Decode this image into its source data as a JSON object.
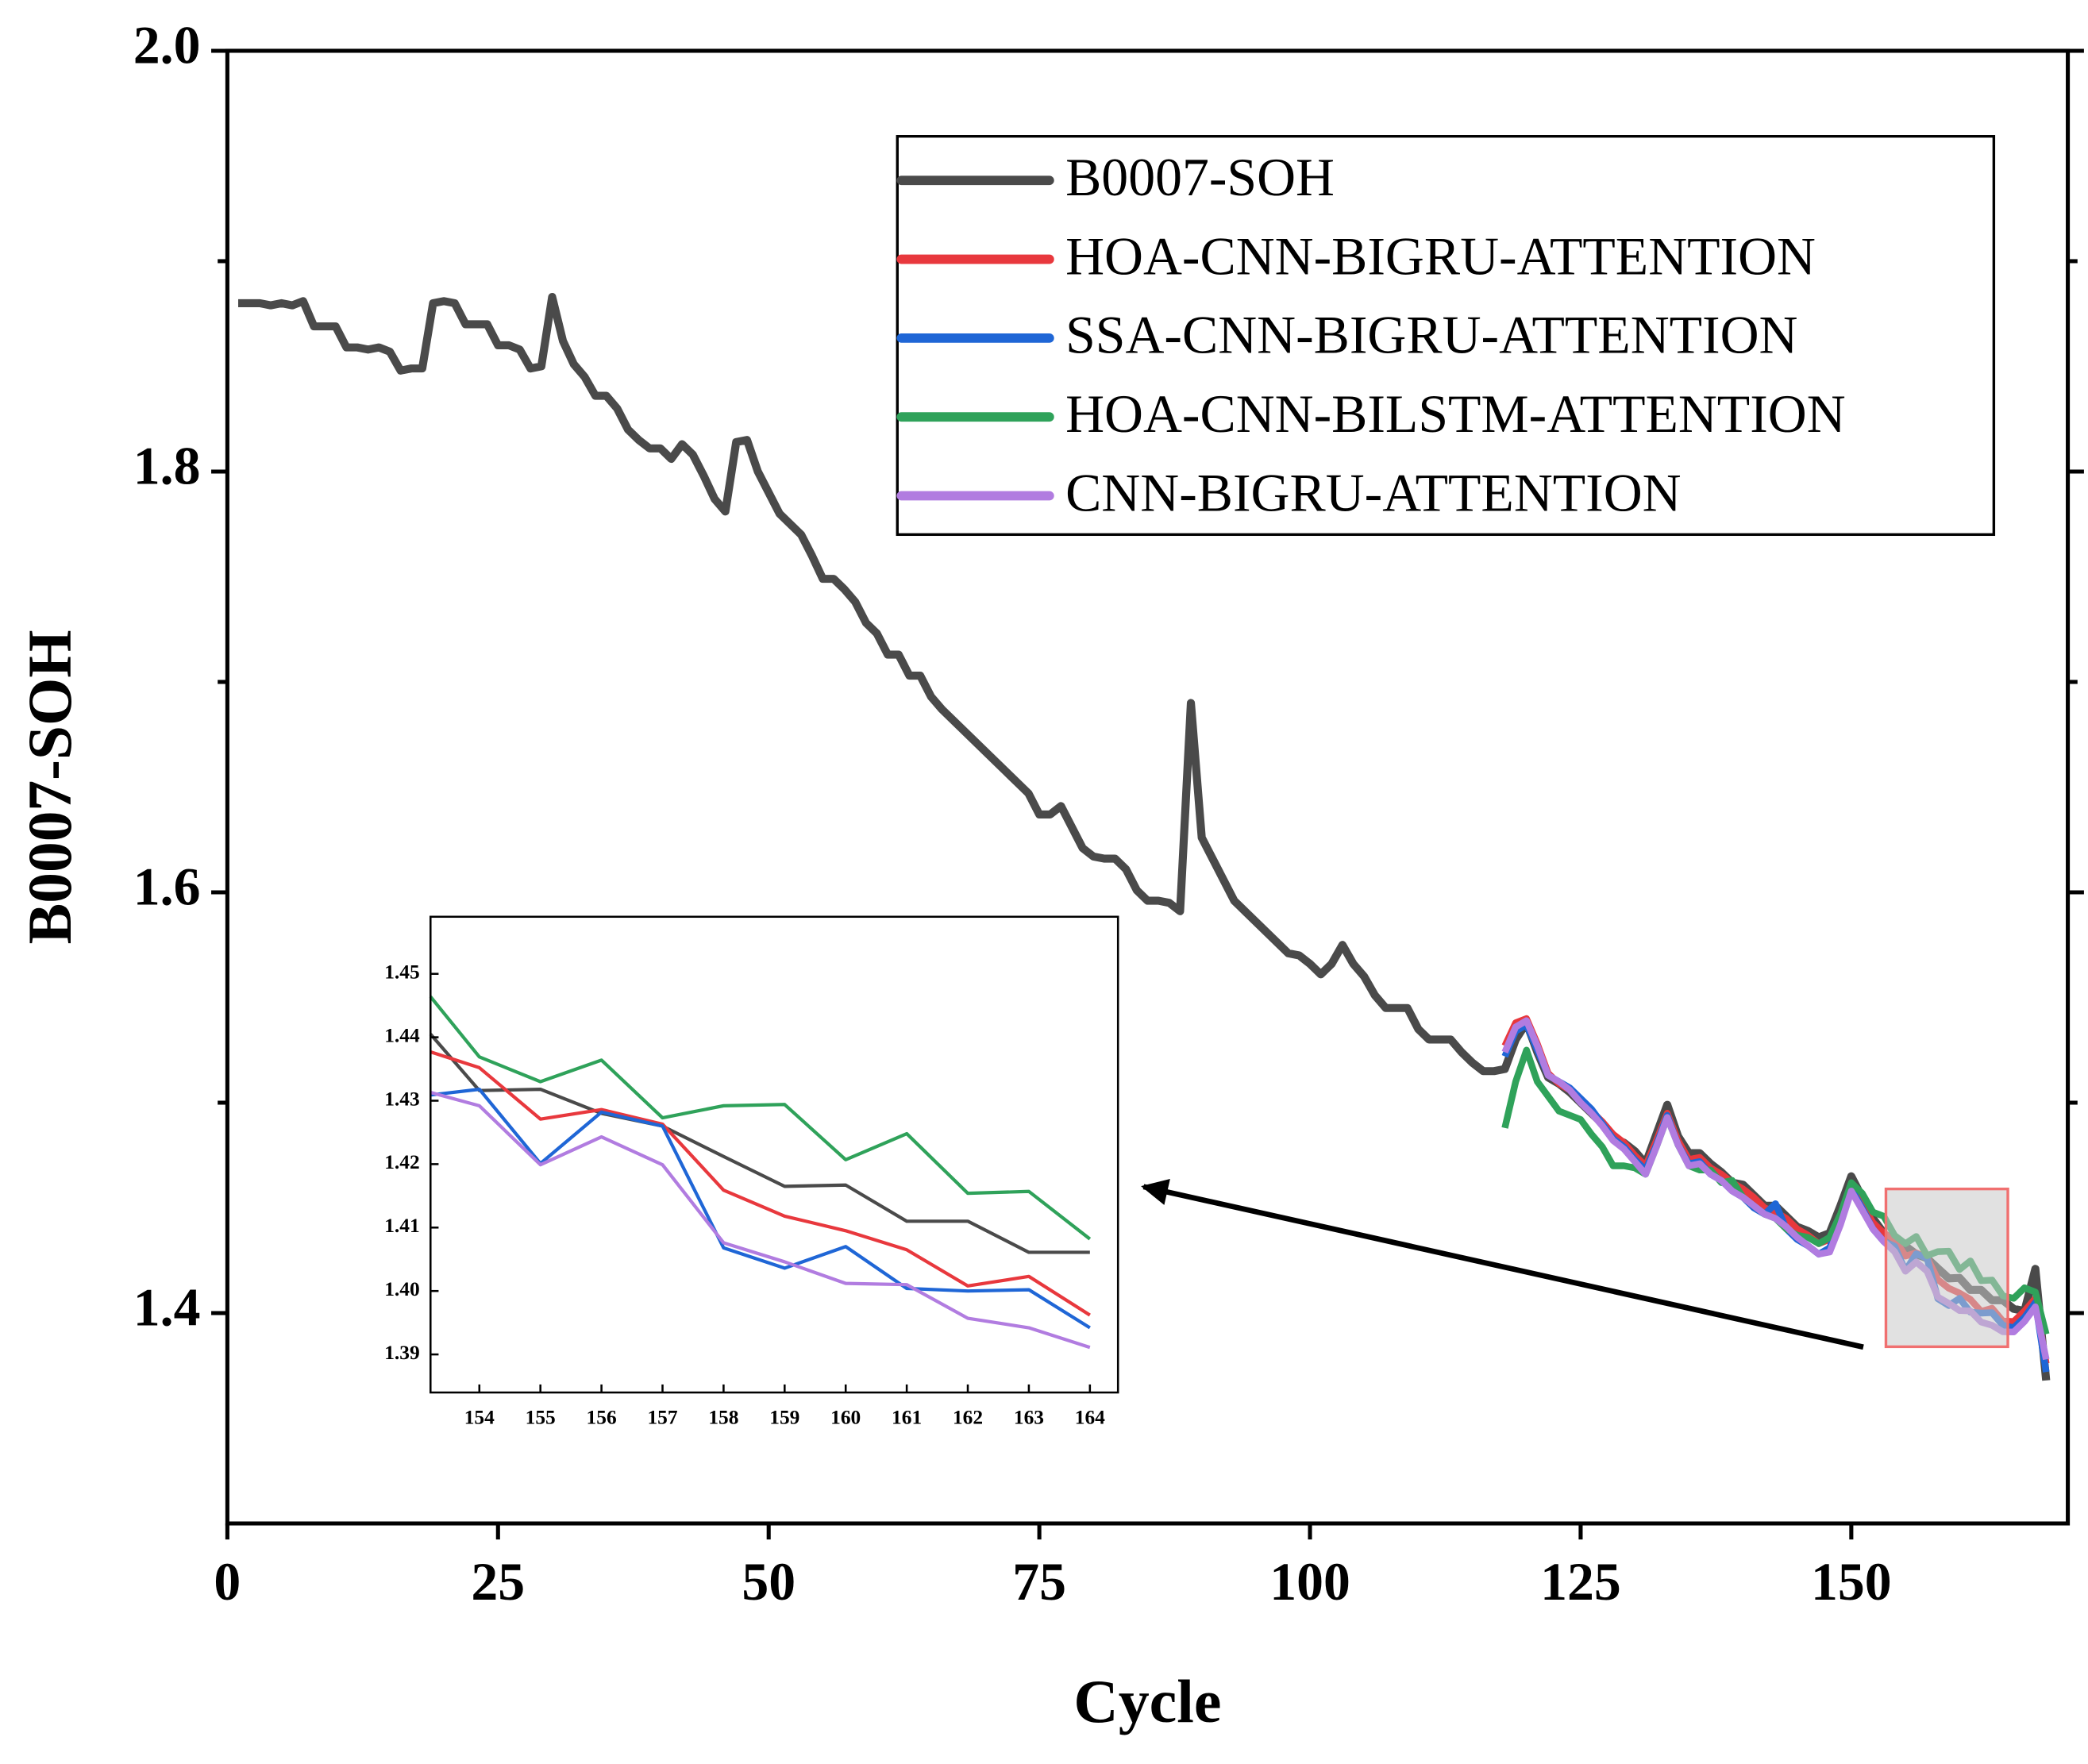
{
  "chart_data": [
    {
      "type": "line",
      "xlabel": "Cycle",
      "ylabel": "B0007-SOH",
      "xlim": [
        0,
        170
      ],
      "ylim": [
        1.3,
        2.0
      ],
      "xticks": [
        0,
        25,
        50,
        75,
        100,
        125,
        150
      ],
      "yticks": [
        {
          "value": 1.4,
          "label": "1.4"
        },
        {
          "value": 1.6,
          "label": "1.6"
        },
        {
          "value": 1.8,
          "label": "1.8"
        },
        {
          "value": 2.0,
          "label": "2.0"
        }
      ],
      "yminorticks": [
        1.5,
        1.7,
        1.9
      ],
      "legend": "upper right",
      "series": [
        {
          "name": "B0007-SOH",
          "color": "#4a4a4a",
          "x": [
            1,
            2,
            3,
            4,
            5,
            6,
            7,
            8,
            9,
            10,
            11,
            12,
            13,
            14,
            15,
            16,
            17,
            18,
            19,
            20,
            21,
            22,
            23,
            24,
            25,
            26,
            27,
            28,
            29,
            30,
            31,
            32,
            33,
            34,
            35,
            36,
            37,
            38,
            39,
            40,
            41,
            42,
            43,
            44,
            45,
            46,
            47,
            48,
            49,
            50,
            51,
            52,
            53,
            54,
            55,
            56,
            57,
            58,
            59,
            60,
            61,
            62,
            63,
            64,
            65,
            66,
            67,
            68,
            69,
            70,
            71,
            72,
            73,
            74,
            75,
            76,
            77,
            78,
            79,
            80,
            81,
            82,
            83,
            84,
            85,
            86,
            87,
            88,
            89,
            90,
            91,
            92,
            93,
            94,
            95,
            96,
            97,
            98,
            99,
            100,
            101,
            102,
            103,
            104,
            105,
            106,
            107,
            108,
            109,
            110,
            111,
            112,
            113,
            114,
            115,
            116,
            117,
            118,
            119,
            120,
            121,
            122,
            123,
            124,
            125,
            126,
            127,
            128,
            129,
            130,
            131,
            132,
            133,
            134,
            135,
            136,
            137,
            138,
            139,
            140,
            141,
            142,
            143,
            144,
            145,
            146,
            147,
            148,
            149,
            150,
            151,
            152,
            153,
            154,
            155,
            156,
            157,
            158,
            159,
            160,
            161,
            162,
            163,
            164,
            165,
            166,
            167,
            168
          ],
          "values": [
            1.88,
            1.88,
            1.88,
            1.879,
            1.88,
            1.879,
            1.881,
            1.869,
            1.869,
            1.869,
            1.859,
            1.859,
            1.858,
            1.859,
            1.857,
            1.848,
            1.849,
            1.849,
            1.88,
            1.881,
            1.88,
            1.87,
            1.87,
            1.87,
            1.86,
            1.86,
            1.858,
            1.849,
            1.85,
            1.883,
            1.862,
            1.851,
            1.845,
            1.836,
            1.836,
            1.83,
            1.82,
            1.815,
            1.811,
            1.811,
            1.806,
            1.813,
            1.808,
            1.798,
            1.787,
            1.781,
            1.814,
            1.815,
            1.8,
            1.79,
            1.78,
            1.775,
            1.77,
            1.76,
            1.749,
            1.749,
            1.744,
            1.738,
            1.728,
            1.723,
            1.713,
            1.713,
            1.703,
            1.703,
            1.693,
            1.687,
            1.682,
            1.677,
            1.672,
            1.667,
            1.662,
            1.657,
            1.652,
            1.647,
            1.637,
            1.637,
            1.641,
            1.631,
            1.621,
            1.617,
            1.616,
            1.616,
            1.611,
            1.601,
            1.596,
            1.596,
            1.595,
            1.591,
            1.69,
            1.626,
            1.616,
            1.606,
            1.596,
            1.591,
            1.586,
            1.581,
            1.576,
            1.571,
            1.57,
            1.566,
            1.561,
            1.566,
            1.575,
            1.566,
            1.56,
            1.551,
            1.545,
            1.545,
            1.545,
            1.535,
            1.53,
            1.53,
            1.53,
            1.524,
            1.519,
            1.515,
            1.515,
            1.516,
            1.53,
            1.538,
            1.524,
            1.512,
            1.509,
            1.505,
            1.5,
            1.495,
            1.49,
            1.483,
            1.481,
            1.477,
            1.471,
            1.485,
            1.499,
            1.484,
            1.476,
            1.476,
            1.471,
            1.467,
            1.462,
            1.461,
            1.456,
            1.451,
            1.451,
            1.446,
            1.441,
            1.439,
            1.436,
            1.438,
            1.451,
            1.465,
            1.455,
            1.445,
            1.438,
            1.4316,
            1.4318,
            1.428,
            1.426,
            1.4212,
            1.4165,
            1.4167,
            1.411,
            1.411,
            1.4061,
            1.4061,
            1.402,
            1.401,
            1.421,
            1.368
          ]
        },
        {
          "name": "HOA-CNN-BIGRU-ATTENTION",
          "color": "#e8383d",
          "x": [
            118,
            119,
            120,
            121,
            122,
            123,
            124,
            125,
            126,
            127,
            128,
            129,
            130,
            131,
            132,
            133,
            134,
            135,
            136,
            137,
            138,
            139,
            140,
            141,
            142,
            143,
            144,
            145,
            146,
            147,
            148,
            149,
            150,
            151,
            152,
            153,
            154,
            155,
            156,
            157,
            158,
            159,
            160,
            161,
            162,
            163,
            164,
            165,
            166,
            167,
            168
          ],
          "values": [
            1.527,
            1.538,
            1.54,
            1.528,
            1.514,
            1.509,
            1.506,
            1.501,
            1.496,
            1.491,
            1.485,
            1.481,
            1.475,
            1.47,
            1.482,
            1.495,
            1.482,
            1.473,
            1.474,
            1.469,
            1.466,
            1.462,
            1.459,
            1.455,
            1.45,
            1.448,
            1.445,
            1.44,
            1.437,
            1.433,
            1.435,
            1.446,
            1.46,
            1.452,
            1.443,
            1.438,
            1.4352,
            1.4271,
            1.4286,
            1.4263,
            1.4159,
            1.4118,
            1.4095,
            1.4065,
            1.4008,
            1.4023,
            1.3962,
            1.396,
            1.401,
            1.407,
            1.376
          ]
        },
        {
          "name": "SSA-CNN-BIGRU-ATTENTION",
          "color": "#1f66d6",
          "x": [
            118,
            119,
            120,
            121,
            122,
            123,
            124,
            125,
            126,
            127,
            128,
            129,
            130,
            131,
            132,
            133,
            134,
            135,
            136,
            137,
            138,
            139,
            140,
            141,
            142,
            143,
            144,
            145,
            146,
            147,
            148,
            149,
            150,
            151,
            152,
            153,
            154,
            155,
            156,
            157,
            158,
            159,
            160,
            161,
            162,
            163,
            164,
            165,
            166,
            167,
            168
          ],
          "values": [
            1.522,
            1.534,
            1.537,
            1.525,
            1.513,
            1.51,
            1.507,
            1.502,
            1.497,
            1.49,
            1.483,
            1.479,
            1.473,
            1.468,
            1.48,
            1.494,
            1.48,
            1.471,
            1.472,
            1.466,
            1.463,
            1.458,
            1.455,
            1.45,
            1.447,
            1.452,
            1.44,
            1.435,
            1.432,
            1.428,
            1.431,
            1.444,
            1.459,
            1.45,
            1.44,
            1.434,
            1.4318,
            1.4201,
            1.4282,
            1.426,
            1.4068,
            1.4036,
            1.407,
            1.4004,
            1.4,
            1.4002,
            1.3942,
            1.393,
            1.398,
            1.405,
            1.372
          ]
        },
        {
          "name": "HOA-CNN-BILSTM-ATTENTION",
          "color": "#2fa25a",
          "x": [
            118,
            119,
            120,
            121,
            122,
            123,
            124,
            125,
            126,
            127,
            128,
            129,
            130,
            131,
            132,
            133,
            134,
            135,
            136,
            137,
            138,
            139,
            140,
            141,
            142,
            143,
            144,
            145,
            146,
            147,
            148,
            149,
            150,
            151,
            152,
            153,
            154,
            155,
            156,
            157,
            158,
            159,
            160,
            161,
            162,
            163,
            164,
            165,
            166,
            167,
            168
          ],
          "values": [
            1.488,
            1.51,
            1.525,
            1.51,
            1.503,
            1.496,
            1.494,
            1.492,
            1.485,
            1.479,
            1.47,
            1.47,
            1.469,
            1.466,
            1.479,
            1.493,
            1.48,
            1.47,
            1.468,
            1.468,
            1.462,
            1.463,
            1.455,
            1.451,
            1.447,
            1.445,
            1.44,
            1.437,
            1.436,
            1.433,
            1.436,
            1.447,
            1.462,
            1.457,
            1.448,
            1.446,
            1.4369,
            1.433,
            1.4364,
            1.4273,
            1.4292,
            1.4294,
            1.4207,
            1.4248,
            1.4154,
            1.4157,
            1.4082,
            1.407,
            1.412,
            1.41,
            1.39
          ]
        },
        {
          "name": "CNN-BIGRU-ATTENTION",
          "color": "#b17ce0",
          "x": [
            118,
            119,
            120,
            121,
            122,
            123,
            124,
            125,
            126,
            127,
            128,
            129,
            130,
            131,
            132,
            133,
            134,
            135,
            136,
            137,
            138,
            139,
            140,
            141,
            142,
            143,
            144,
            145,
            146,
            147,
            148,
            149,
            150,
            151,
            152,
            153,
            154,
            155,
            156,
            157,
            158,
            159,
            160,
            161,
            162,
            163,
            164,
            165,
            166,
            167,
            168
          ],
          "values": [
            1.524,
            1.536,
            1.539,
            1.527,
            1.513,
            1.51,
            1.506,
            1.5,
            1.495,
            1.489,
            1.482,
            1.478,
            1.472,
            1.466,
            1.479,
            1.493,
            1.48,
            1.47,
            1.471,
            1.466,
            1.463,
            1.458,
            1.455,
            1.451,
            1.447,
            1.445,
            1.441,
            1.436,
            1.432,
            1.428,
            1.429,
            1.442,
            1.458,
            1.449,
            1.44,
            1.434,
            1.4292,
            1.4199,
            1.4243,
            1.4199,
            1.4076,
            1.4046,
            1.4012,
            1.401,
            1.3957,
            1.3942,
            1.3911,
            1.391,
            1.396,
            1.403,
            1.378
          ]
        }
      ]
    },
    {
      "type": "line",
      "xlim": [
        153.2,
        164.46
      ],
      "ylim": [
        1.384,
        1.459
      ],
      "xticks": [
        154,
        155,
        156,
        157,
        158,
        159,
        160,
        161,
        162,
        163,
        164
      ],
      "yticks": [
        1.39,
        {
          "value": 1.4,
          "label": "1.40"
        },
        1.41,
        1.42,
        1.43,
        1.44,
        1.45
      ],
      "series": [
        {
          "color": "#4a4a4a",
          "x": [
            153.2,
            154,
            155,
            156,
            157,
            158,
            159,
            160,
            161,
            162,
            163,
            164
          ],
          "values": [
            1.4405,
            1.4316,
            1.4318,
            1.428,
            1.426,
            1.4212,
            1.4165,
            1.4167,
            1.411,
            1.411,
            1.4061,
            1.4061
          ]
        },
        {
          "color": "#e8383d",
          "x": [
            153.2,
            154,
            155,
            156,
            157,
            158,
            159,
            160,
            161,
            162,
            163,
            164
          ],
          "values": [
            1.4377,
            1.4352,
            1.4271,
            1.4286,
            1.4263,
            1.4159,
            1.4118,
            1.4095,
            1.4065,
            1.4008,
            1.4023,
            1.3962
          ]
        },
        {
          "color": "#1f66d6",
          "x": [
            153.2,
            154,
            155,
            156,
            157,
            158,
            159,
            160,
            161,
            162,
            163,
            164
          ],
          "values": [
            1.4309,
            1.4318,
            1.4201,
            1.4282,
            1.426,
            1.4068,
            1.4036,
            1.407,
            1.4004,
            1.4,
            1.4002,
            1.3942
          ]
        },
        {
          "color": "#2fa25a",
          "x": [
            153.2,
            154,
            155,
            156,
            157,
            158,
            159,
            160,
            161,
            162,
            163,
            164
          ],
          "values": [
            1.4464,
            1.4369,
            1.433,
            1.4364,
            1.4273,
            1.4292,
            1.4294,
            1.4207,
            1.4248,
            1.4154,
            1.4157,
            1.4082
          ]
        },
        {
          "color": "#b17ce0",
          "x": [
            153.2,
            154,
            155,
            156,
            157,
            158,
            159,
            160,
            161,
            162,
            163,
            164
          ],
          "values": [
            1.4313,
            1.4292,
            1.4199,
            1.4243,
            1.4199,
            1.4076,
            1.4046,
            1.4012,
            1.401,
            1.3957,
            1.3942,
            1.3911
          ]
        }
      ]
    }
  ]
}
